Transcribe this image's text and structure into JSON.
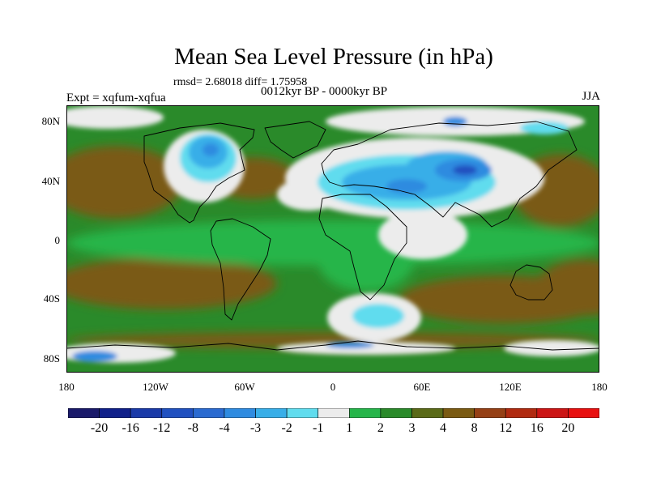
{
  "title": "Mean Sea Level Pressure (in hPa)",
  "stats": "rmsd= 2.68018 diff= 1.75958",
  "experiment": "Expt = xqfum-xqfua",
  "period": "0012kyr BP - 0000kyr BP",
  "season": "JJA",
  "axes": {
    "lat_ticks": [
      "80N",
      "40N",
      "0",
      "40S",
      "80S"
    ],
    "lon_ticks": [
      "180",
      "120W",
      "60W",
      "0",
      "60E",
      "120E",
      "180"
    ]
  },
  "colorbar": {
    "labels": [
      "-20",
      "-16",
      "-12",
      "-8",
      "-4",
      "-3",
      "-2",
      "-1",
      "1",
      "2",
      "3",
      "4",
      "8",
      "12",
      "16",
      "20"
    ],
    "colors": [
      "#1a1a6a",
      "#10208a",
      "#1a3aa8",
      "#2050c0",
      "#2a6ad0",
      "#2f8be0",
      "#38aee8",
      "#60dcee",
      "#ececec",
      "#26b54a",
      "#2a8a2a",
      "#5a6a18",
      "#7a5a12",
      "#954015",
      "#b02a10",
      "#cc1515",
      "#e81010"
    ]
  },
  "palette": {
    "ocean_brown": "#7a5a12",
    "dark_green": "#2a8a2a",
    "green": "#26b54a",
    "near_zero": "#ececec",
    "cyan": "#60dcee",
    "light_blue": "#38aee8",
    "blue": "#2f8be0",
    "deep_blue": "#2050c0",
    "coast": "#000000"
  }
}
